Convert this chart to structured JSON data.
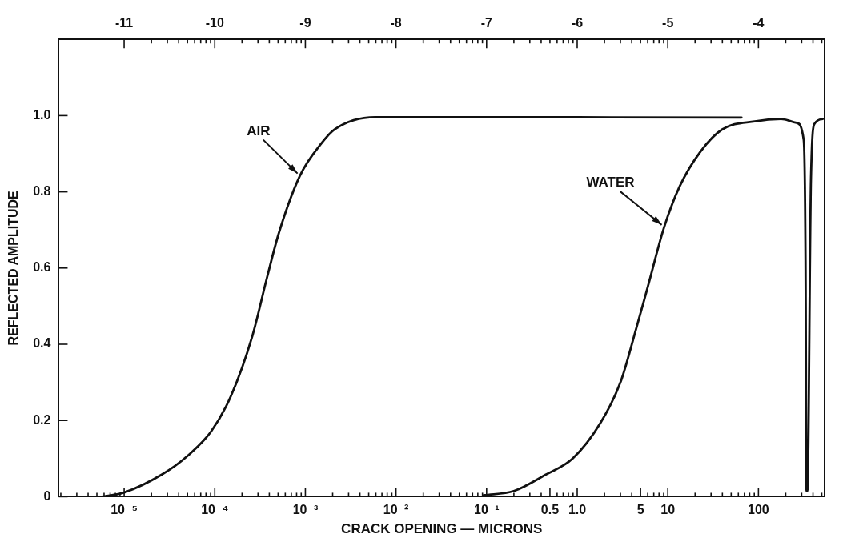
{
  "chart_data": {
    "type": "line",
    "xlabel": "CRACK OPENING — MICRONS",
    "ylabel": "REFLECTED AMPLITUDE",
    "log": "x",
    "grid": false,
    "legend": false,
    "marker": "none",
    "line_style": "solid",
    "xlim": [
      1.9e-06,
      537
    ],
    "ylim": [
      0,
      1.2
    ],
    "xticks": [
      {
        "value": 2e-06,
        "label": null
      },
      {
        "value": 3e-06,
        "label": null
      },
      {
        "value": 4e-06,
        "label": null
      },
      {
        "value": 5e-06,
        "label": null
      },
      {
        "value": 6e-06,
        "label": null
      },
      {
        "value": 7e-06,
        "label": null
      },
      {
        "value": 8e-06,
        "label": null
      },
      {
        "value": 9e-06,
        "label": null
      },
      {
        "value": 1e-05,
        "label": "10⁻⁵"
      },
      {
        "value": 2e-05,
        "label": null
      },
      {
        "value": 3e-05,
        "label": null
      },
      {
        "value": 4e-05,
        "label": null
      },
      {
        "value": 5e-05,
        "label": null
      },
      {
        "value": 6e-05,
        "label": null
      },
      {
        "value": 7e-05,
        "label": null
      },
      {
        "value": 8e-05,
        "label": null
      },
      {
        "value": 9e-05,
        "label": null
      },
      {
        "value": 0.0001,
        "label": "10⁻⁴"
      },
      {
        "value": 0.0002,
        "label": null
      },
      {
        "value": 0.0003,
        "label": null
      },
      {
        "value": 0.0004,
        "label": null
      },
      {
        "value": 0.0005,
        "label": null
      },
      {
        "value": 0.0006,
        "label": null
      },
      {
        "value": 0.0007,
        "label": null
      },
      {
        "value": 0.0008,
        "label": null
      },
      {
        "value": 0.0009,
        "label": null
      },
      {
        "value": 0.001,
        "label": "10⁻³"
      },
      {
        "value": 0.002,
        "label": null
      },
      {
        "value": 0.003,
        "label": null
      },
      {
        "value": 0.004,
        "label": null
      },
      {
        "value": 0.005,
        "label": null
      },
      {
        "value": 0.006,
        "label": null
      },
      {
        "value": 0.007,
        "label": null
      },
      {
        "value": 0.008,
        "label": null
      },
      {
        "value": 0.009,
        "label": null
      },
      {
        "value": 0.01,
        "label": "10⁻²"
      },
      {
        "value": 0.02,
        "label": null
      },
      {
        "value": 0.03,
        "label": null
      },
      {
        "value": 0.04,
        "label": null
      },
      {
        "value": 0.05,
        "label": null
      },
      {
        "value": 0.06,
        "label": null
      },
      {
        "value": 0.07,
        "label": null
      },
      {
        "value": 0.08,
        "label": null
      },
      {
        "value": 0.09,
        "label": null
      },
      {
        "value": 0.1,
        "label": "10⁻¹"
      },
      {
        "value": 0.2,
        "label": null
      },
      {
        "value": 0.3,
        "label": null
      },
      {
        "value": 0.4,
        "label": null
      },
      {
        "value": 0.5,
        "label": "0.5"
      },
      {
        "value": 0.6,
        "label": null
      },
      {
        "value": 0.7,
        "label": null
      },
      {
        "value": 0.8,
        "label": null
      },
      {
        "value": 0.9,
        "label": null
      },
      {
        "value": 1,
        "label": "1.0"
      },
      {
        "value": 2,
        "label": null
      },
      {
        "value": 3,
        "label": null
      },
      {
        "value": 4,
        "label": null
      },
      {
        "value": 5,
        "label": "5"
      },
      {
        "value": 6,
        "label": null
      },
      {
        "value": 7,
        "label": null
      },
      {
        "value": 8,
        "label": null
      },
      {
        "value": 9,
        "label": null
      },
      {
        "value": 10,
        "label": "10"
      },
      {
        "value": 20,
        "label": null
      },
      {
        "value": 30,
        "label": null
      },
      {
        "value": 40,
        "label": null
      },
      {
        "value": 50,
        "label": null
      },
      {
        "value": 60,
        "label": null
      },
      {
        "value": 70,
        "label": null
      },
      {
        "value": 80,
        "label": null
      },
      {
        "value": 90,
        "label": null
      },
      {
        "value": 100,
        "label": "100"
      },
      {
        "value": 200,
        "label": null
      },
      {
        "value": 300,
        "label": null
      },
      {
        "value": 400,
        "label": null
      },
      {
        "value": 500,
        "label": null
      }
    ],
    "x2lim": [
      -11.721,
      -3.27
    ],
    "x2ticks": [
      -11,
      {
        "value": -10.699,
        "label": null
      },
      {
        "value": -10.523,
        "label": null
      },
      {
        "value": -10.398,
        "label": null
      },
      {
        "value": -10.301,
        "label": null
      },
      {
        "value": -10.222,
        "label": null
      },
      {
        "value": -10.155,
        "label": null
      },
      {
        "value": -10.097,
        "label": null
      },
      {
        "value": -10.046,
        "label": null
      },
      -10,
      {
        "value": -9.699,
        "label": null
      },
      {
        "value": -9.523,
        "label": null
      },
      {
        "value": -9.398,
        "label": null
      },
      {
        "value": -9.301,
        "label": null
      },
      {
        "value": -9.222,
        "label": null
      },
      {
        "value": -9.155,
        "label": null
      },
      {
        "value": -9.097,
        "label": null
      },
      {
        "value": -9.046,
        "label": null
      },
      -9,
      {
        "value": -8.699,
        "label": null
      },
      {
        "value": -8.523,
        "label": null
      },
      {
        "value": -8.398,
        "label": null
      },
      {
        "value": -8.301,
        "label": null
      },
      {
        "value": -8.222,
        "label": null
      },
      {
        "value": -8.155,
        "label": null
      },
      {
        "value": -8.097,
        "label": null
      },
      {
        "value": -8.046,
        "label": null
      },
      -8,
      {
        "value": -7.699,
        "label": null
      },
      {
        "value": -7.523,
        "label": null
      },
      {
        "value": -7.398,
        "label": null
      },
      {
        "value": -7.301,
        "label": null
      },
      {
        "value": -7.222,
        "label": null
      },
      {
        "value": -7.155,
        "label": null
      },
      {
        "value": -7.097,
        "label": null
      },
      {
        "value": -7.046,
        "label": null
      },
      -7,
      {
        "value": -6.699,
        "label": null
      },
      {
        "value": -6.523,
        "label": null
      },
      {
        "value": -6.398,
        "label": null
      },
      {
        "value": -6.301,
        "label": null
      },
      {
        "value": -6.222,
        "label": null
      },
      {
        "value": -6.155,
        "label": null
      },
      {
        "value": -6.097,
        "label": null
      },
      {
        "value": -6.046,
        "label": null
      },
      -6,
      {
        "value": -5.699,
        "label": null
      },
      {
        "value": -5.523,
        "label": null
      },
      {
        "value": -5.398,
        "label": null
      },
      {
        "value": -5.301,
        "label": null
      },
      {
        "value": -5.222,
        "label": null
      },
      {
        "value": -5.155,
        "label": null
      },
      {
        "value": -5.097,
        "label": null
      },
      {
        "value": -5.046,
        "label": null
      },
      -5,
      {
        "value": -4.699,
        "label": null
      },
      {
        "value": -4.523,
        "label": null
      },
      {
        "value": -4.398,
        "label": null
      },
      {
        "value": -4.301,
        "label": null
      },
      {
        "value": -4.222,
        "label": null
      },
      {
        "value": -4.155,
        "label": null
      },
      {
        "value": -4.097,
        "label": null
      },
      {
        "value": -4.046,
        "label": null
      },
      -4,
      {
        "value": -3.699,
        "label": null
      },
      {
        "value": -3.523,
        "label": null
      },
      {
        "value": -3.398,
        "label": null
      },
      {
        "value": -3.301,
        "label": null
      }
    ],
    "yticks": [
      {
        "value": 0,
        "label": "0"
      },
      0.2,
      0.4,
      0.6,
      0.8,
      {
        "value": 1,
        "label": "1.0"
      }
    ],
    "annotations": [
      {
        "text": "AIR",
        "x": 0.00087,
        "y": 0.842
      },
      {
        "text": "WATER",
        "x": 9.1,
        "y": 0.707
      }
    ],
    "series": [
      {
        "color": "#111111",
        "x": [
          5.8e-06,
          1e-05,
          2.6e-05,
          5e-05,
          9.1e-05,
          0.00015,
          0.00026,
          0.00038,
          0.00051,
          0.00087,
          0.0015,
          0.0021,
          0.0059,
          65
        ],
        "values": [
          0,
          0.011,
          0.058,
          0.107,
          0.171,
          0.263,
          0.422,
          0.578,
          0.692,
          0.842,
          0.927,
          0.964,
          0.996,
          0.995
        ]
      },
      {
        "color": "#111111",
        "x": [
          0.093,
          0.2,
          0.45,
          0.89,
          1.8,
          3.0,
          4.5,
          6.0,
          9.1,
          13.5,
          23,
          40,
          91,
          178,
          263,
          316,
          331,
          339,
          347,
          380,
          417,
          513
        ],
        "values": [
          0.004,
          0.015,
          0.058,
          0.1,
          0.193,
          0.3,
          0.443,
          0.55,
          0.707,
          0.814,
          0.906,
          0.964,
          0.985,
          0.991,
          0.981,
          0.936,
          0.62,
          0.015,
          0.015,
          0.835,
          0.979,
          0.991
        ]
      }
    ]
  }
}
